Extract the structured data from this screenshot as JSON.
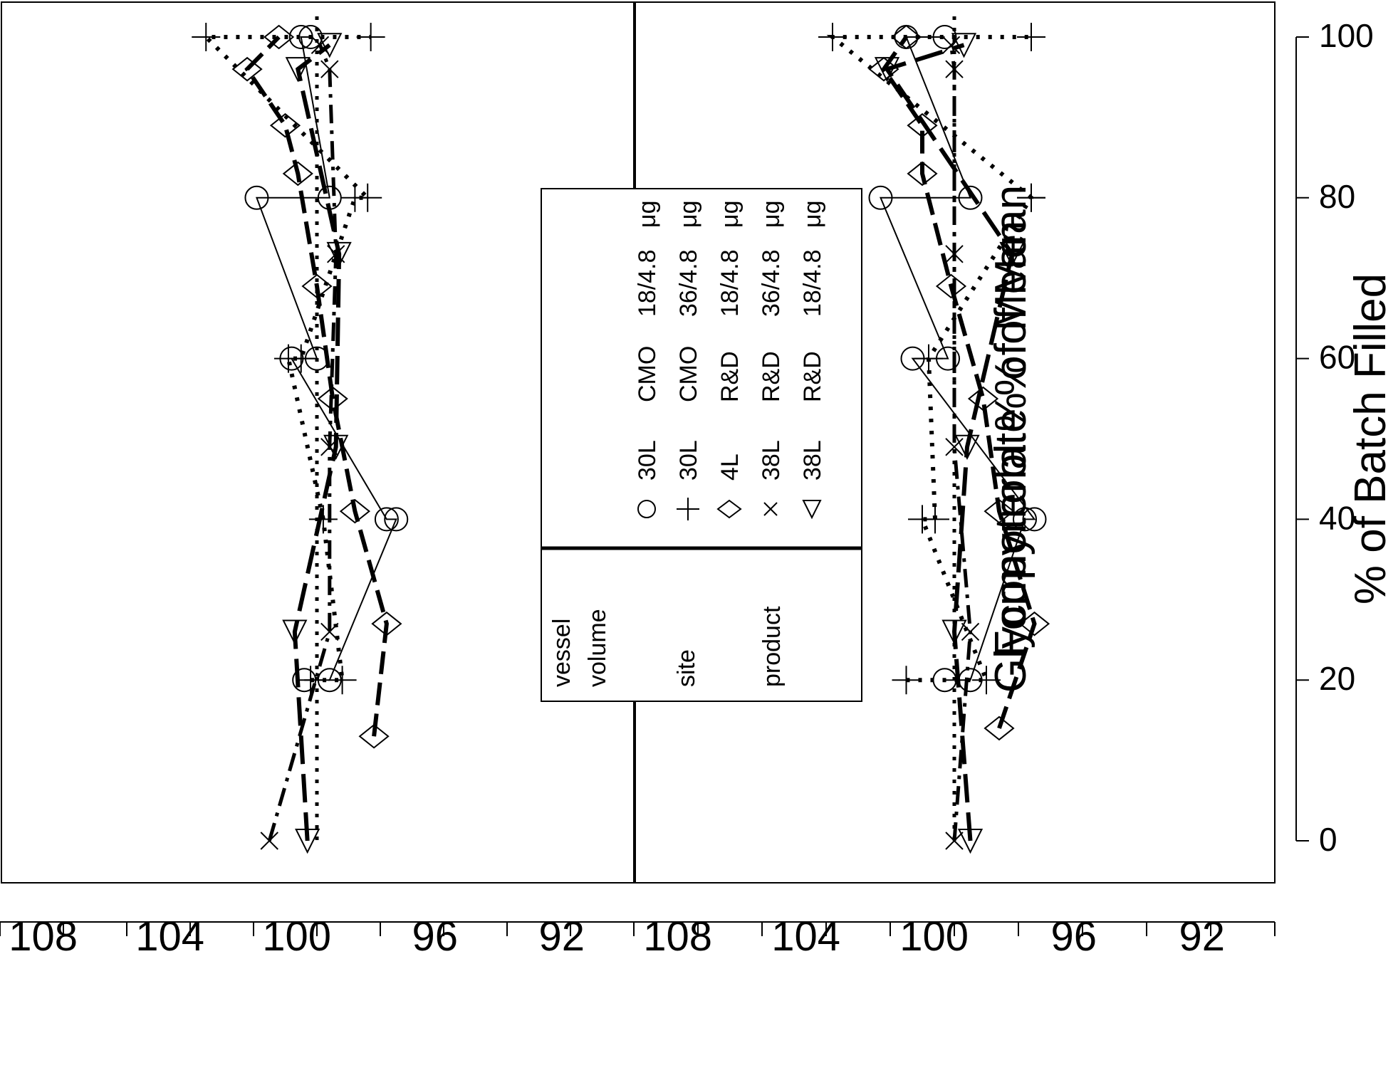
{
  "chart_data": [
    {
      "type": "line",
      "ylabel": "Glycopyrrolate  % of Mean",
      "xlabel": "",
      "xlim": [
        0,
        100
      ],
      "ylim": [
        90,
        110
      ],
      "yticks": [
        92,
        96,
        100,
        104,
        108
      ],
      "xticks": [],
      "reference_line": 100,
      "series": [
        {
          "key": "s1",
          "marker": "circle",
          "line": "solid",
          "x": [
            20,
            20,
            40,
            40,
            60,
            60,
            80,
            80,
            100,
            100
          ],
          "y": [
            100.4,
            99.6,
            97.5,
            97.8,
            100.8,
            100.0,
            101.9,
            99.6,
            100.5,
            100.2
          ]
        },
        {
          "key": "s2",
          "marker": "plus",
          "line": "dotted",
          "x": [
            20,
            20,
            40,
            60,
            60,
            80,
            80,
            100,
            100
          ],
          "y": [
            100.2,
            99.2,
            99.8,
            100.9,
            100.5,
            98.8,
            98.4,
            103.5,
            98.3
          ]
        },
        {
          "key": "s3",
          "marker": "diamond",
          "line": "dashed",
          "x": [
            13,
            27,
            41,
            55,
            69,
            83,
            89,
            96,
            100
          ],
          "y": [
            98.2,
            97.8,
            98.8,
            99.5,
            100.0,
            100.6,
            101.0,
            102.2,
            101.2
          ]
        },
        {
          "key": "s4",
          "marker": "x",
          "line": "dash-dot",
          "x": [
            0,
            26,
            49,
            73,
            96,
            99
          ],
          "y": [
            101.5,
            99.6,
            99.6,
            99.4,
            99.6,
            99.9
          ]
        },
        {
          "key": "s5",
          "marker": "triangle",
          "line": "long-dash",
          "x": [
            0,
            26,
            49,
            73,
            96,
            99
          ],
          "y": [
            100.3,
            100.7,
            99.4,
            99.3,
            100.6,
            99.6
          ]
        }
      ]
    },
    {
      "type": "line",
      "ylabel": "Formoterol % of Mean",
      "xlabel": "% of Batch Filled",
      "xlim": [
        0,
        100
      ],
      "ylim": [
        90,
        110
      ],
      "yticks": [
        92,
        96,
        100,
        104,
        108
      ],
      "xticks": [
        0,
        20,
        40,
        60,
        80,
        100
      ],
      "reference_line": 100,
      "series": [
        {
          "key": "s1",
          "marker": "circle",
          "line": "solid",
          "x": [
            20,
            20,
            40,
            40,
            60,
            60,
            80,
            80,
            100,
            100
          ],
          "y": [
            100.3,
            99.5,
            97.8,
            97.5,
            101.3,
            100.2,
            102.3,
            99.5,
            101.5,
            100.3
          ]
        },
        {
          "key": "s2",
          "marker": "plus",
          "line": "dotted",
          "x": [
            20,
            20,
            40,
            40,
            60,
            80,
            80,
            100,
            100
          ],
          "y": [
            101.5,
            99.0,
            101.0,
            100.6,
            100.8,
            97.6,
            97.6,
            103.8,
            97.6
          ]
        },
        {
          "key": "s3",
          "marker": "diamond",
          "line": "dashed",
          "x": [
            14,
            27,
            41,
            55,
            69,
            83,
            89,
            96,
            100
          ],
          "y": [
            98.6,
            97.5,
            98.6,
            99.1,
            100.1,
            101.0,
            101.0,
            102.2,
            101.5
          ]
        },
        {
          "key": "s4",
          "marker": "x",
          "line": "dash-dot",
          "x": [
            0,
            26,
            49,
            73,
            96,
            99
          ],
          "y": [
            100.0,
            99.5,
            100.0,
            100.0,
            100.0,
            100.1
          ]
        },
        {
          "key": "s5",
          "marker": "triangle",
          "line": "long-dash",
          "x": [
            0,
            26,
            49,
            73,
            96,
            99
          ],
          "y": [
            99.5,
            100.0,
            99.6,
            98.2,
            102.1,
            99.7
          ]
        }
      ]
    }
  ],
  "legend": {
    "position": "center",
    "headers": {
      "col1_line1": "vessel",
      "col1_line2": "volume",
      "col2": "site",
      "col3": "product"
    },
    "rows": [
      {
        "marker": "circle",
        "volume": "30L",
        "site": "CMO",
        "product": "18/4.8",
        "unit": "μg"
      },
      {
        "marker": "plus",
        "volume": "30L",
        "site": "CMO",
        "product": "36/4.8",
        "unit": "μg"
      },
      {
        "marker": "diamond",
        "volume": "4L",
        "site": "R&D",
        "product": "18/4.8",
        "unit": "μg"
      },
      {
        "marker": "x",
        "volume": "38L",
        "site": "R&D",
        "product": "36/4.8",
        "unit": "μg"
      },
      {
        "marker": "triangle",
        "volume": "38L",
        "site": "R&D",
        "product": "18/4.8",
        "unit": "μg"
      }
    ]
  }
}
